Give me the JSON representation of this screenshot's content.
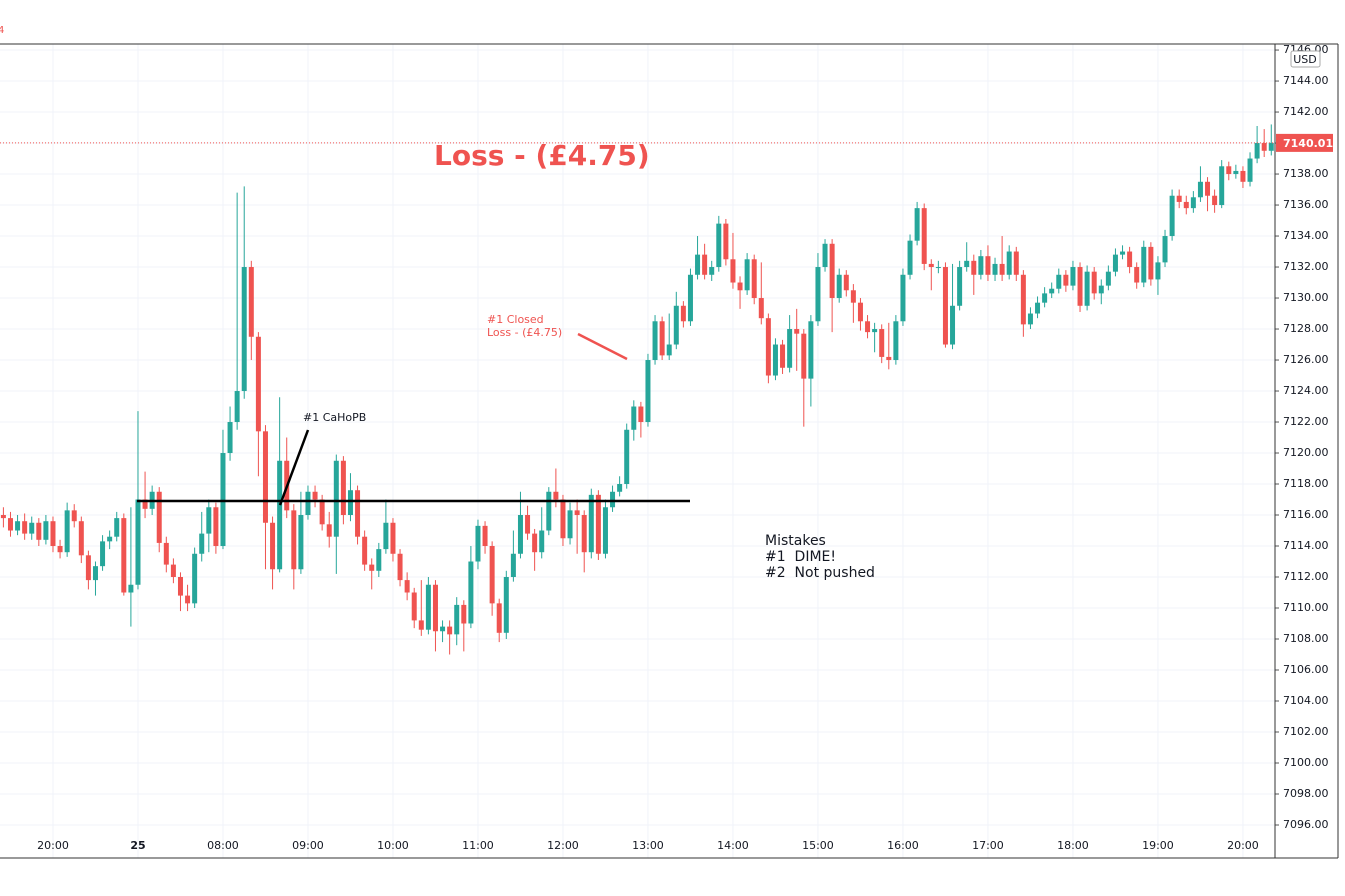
{
  "chart_data": {
    "type": "candlestick",
    "corner_label": "4",
    "currency": "USD",
    "annotations": {
      "headline": "Loss - (£4.75)",
      "closed_note": [
        "#1 Closed",
        "Loss - (£4.75)"
      ],
      "entry_note": "#1 CaHoPB",
      "mistakes": [
        "Mistakes",
        "#1  DIME!",
        "#2  Not pushed"
      ]
    },
    "level_line": 7116.9,
    "up_color": "#26a69a",
    "down_color": "#ef5350",
    "grid": true,
    "ylim": [
      7093.87,
      7146.39
    ],
    "yticks": [
      {
        "value": 7096,
        "label": "7096.00"
      },
      {
        "value": 7098,
        "label": "7098.00"
      },
      {
        "value": 7100,
        "label": "7100.00"
      },
      {
        "value": 7102,
        "label": "7102.00"
      },
      {
        "value": 7104,
        "label": "7104.00"
      },
      {
        "value": 7106,
        "label": "7106.00"
      },
      {
        "value": 7108,
        "label": "7108.00"
      },
      {
        "value": 7110,
        "label": "7110.00"
      },
      {
        "value": 7112,
        "label": "7112.00"
      },
      {
        "value": 7114,
        "label": "7114.00"
      },
      {
        "value": 7116,
        "label": "7116.00"
      },
      {
        "value": 7118,
        "label": "7118.00"
      },
      {
        "value": 7120,
        "label": "7120.00"
      },
      {
        "value": 7122,
        "label": "7122.00"
      },
      {
        "value": 7124,
        "label": "7124.00"
      },
      {
        "value": 7126,
        "label": "7126.00"
      },
      {
        "value": 7128,
        "label": "7128.00"
      },
      {
        "value": 7130,
        "label": "7130.00"
      },
      {
        "value": 7132,
        "label": "7132.00"
      },
      {
        "value": 7134,
        "label": "7134.00"
      },
      {
        "value": 7136,
        "label": "7136.00"
      },
      {
        "value": 7138,
        "label": "7138.00"
      },
      {
        "value": 7140,
        "label": "7140.00"
      },
      {
        "value": 7142,
        "label": "7142.00"
      },
      {
        "value": 7144,
        "label": "7144.00"
      },
      {
        "value": 7146,
        "label": "7146.00"
      }
    ],
    "categories": [
      null,
      null,
      null,
      null,
      null,
      null,
      null,
      "20:00",
      null,
      null,
      null,
      null,
      null,
      null,
      null,
      null,
      null,
      null,
      null,
      "25",
      null,
      null,
      null,
      null,
      null,
      null,
      null,
      null,
      null,
      null,
      null,
      "08:00",
      null,
      null,
      null,
      null,
      null,
      null,
      null,
      null,
      null,
      null,
      null,
      "09:00",
      null,
      null,
      null,
      null,
      null,
      null,
      null,
      null,
      null,
      null,
      null,
      "10:00",
      null,
      null,
      null,
      null,
      null,
      null,
      null,
      null,
      null,
      null,
      null,
      "11:00",
      null,
      null,
      null,
      null,
      null,
      null,
      null,
      null,
      null,
      null,
      null,
      "12:00",
      null,
      null,
      null,
      null,
      null,
      null,
      null,
      null,
      null,
      null,
      null,
      "13:00",
      null,
      null,
      null,
      null,
      null,
      null,
      null,
      null,
      null,
      null,
      null,
      "14:00",
      null,
      null,
      null,
      null,
      null,
      null,
      null,
      null,
      null,
      null,
      null,
      "15:00",
      null,
      null,
      null,
      null,
      null,
      null,
      null,
      null,
      null,
      null,
      null,
      "16:00",
      null,
      null,
      null,
      null,
      null,
      null,
      null,
      null,
      null,
      null,
      null,
      "17:00",
      null,
      null,
      null,
      null,
      null,
      null,
      null,
      null,
      null,
      null,
      null,
      "18:00",
      null,
      null,
      null,
      null,
      null,
      null,
      null,
      null,
      null,
      null,
      null,
      "19:00",
      null,
      null,
      null,
      null,
      null,
      null,
      null,
      null,
      null,
      null,
      null,
      "20:00",
      null,
      null,
      null,
      null
    ],
    "ohlc": [
      [
        7116,
        7116.5,
        7115.2,
        7115.8
      ],
      [
        7115.8,
        7116.2,
        7114.6,
        7115
      ],
      [
        7115,
        7116,
        7114.7,
        7115.6
      ],
      [
        7115.6,
        7116.1,
        7114.4,
        7114.8
      ],
      [
        7114.8,
        7115.9,
        7114.4,
        7115.5
      ],
      [
        7115.5,
        7115.8,
        7114,
        7114.4
      ],
      [
        7114.4,
        7116,
        7114.1,
        7115.6
      ],
      [
        7115.6,
        7115.9,
        7113.6,
        7114
      ],
      [
        7114,
        7114.4,
        7113.2,
        7113.6
      ],
      [
        7113.6,
        7116.8,
        7113.3,
        7116.3
      ],
      [
        7116.3,
        7116.7,
        7115.2,
        7115.6
      ],
      [
        7115.6,
        7115.9,
        7112.9,
        7113.4
      ],
      [
        7113.4,
        7113.7,
        7111.2,
        7111.8
      ],
      [
        7111.8,
        7113,
        7110.8,
        7112.7
      ],
      [
        7112.7,
        7114.7,
        7112.4,
        7114.3
      ],
      [
        7114.3,
        7115,
        7113.8,
        7114.6
      ],
      [
        7114.6,
        7116.2,
        7114.3,
        7115.8
      ],
      [
        7115.8,
        7116.1,
        7110.8,
        7111
      ],
      [
        7111,
        7116.5,
        7108.8,
        7111.5
      ],
      [
        7111.5,
        7122.7,
        7111.2,
        7117
      ],
      [
        7117,
        7118.8,
        7115.8,
        7116.4
      ],
      [
        7116.4,
        7117.9,
        7116,
        7117.5
      ],
      [
        7117.5,
        7117.8,
        7113.6,
        7114.2
      ],
      [
        7114.2,
        7114.6,
        7112.3,
        7112.8
      ],
      [
        7112.8,
        7113.2,
        7111.6,
        7112
      ],
      [
        7112,
        7112.3,
        7109.8,
        7110.8
      ],
      [
        7110.8,
        7111.5,
        7109.8,
        7110.3
      ],
      [
        7110.3,
        7113.9,
        7110,
        7113.5
      ],
      [
        7113.5,
        7116.2,
        7113,
        7114.8
      ],
      [
        7114.8,
        7117,
        7113.6,
        7116.5
      ],
      [
        7116.5,
        7116.8,
        7113.5,
        7114
      ],
      [
        7114,
        7121.5,
        7113.8,
        7120
      ],
      [
        7120,
        7123,
        7119.5,
        7122
      ],
      [
        7122,
        7136.8,
        7121.5,
        7124
      ],
      [
        7124,
        7137.2,
        7123.5,
        7132
      ],
      [
        7132,
        7132.4,
        7126,
        7127.5
      ],
      [
        7127.5,
        7127.8,
        7118.5,
        7121.4
      ],
      [
        7121.4,
        7121.8,
        7112.5,
        7115.5
      ],
      [
        7115.5,
        7115.9,
        7111.2,
        7112.5
      ],
      [
        7112.5,
        7123.6,
        7112.3,
        7119.5
      ],
      [
        7119.5,
        7121,
        7115.8,
        7116.3
      ],
      [
        7116.3,
        7116.7,
        7111.2,
        7112.5
      ],
      [
        7112.5,
        7117.5,
        7112.2,
        7116
      ],
      [
        7116,
        7117.9,
        7115.7,
        7117.5
      ],
      [
        7117.5,
        7117.9,
        7116.5,
        7117
      ],
      [
        7117,
        7117.3,
        7115,
        7115.4
      ],
      [
        7115.4,
        7116.2,
        7113.9,
        7114.6
      ],
      [
        7114.6,
        7119.9,
        7112.2,
        7119.5
      ],
      [
        7119.5,
        7119.8,
        7115.4,
        7116
      ],
      [
        7116,
        7118.7,
        7115.6,
        7117.6
      ],
      [
        7117.6,
        7117.9,
        7114.1,
        7114.6
      ],
      [
        7114.6,
        7115,
        7112.4,
        7112.8
      ],
      [
        7112.8,
        7113.2,
        7111.2,
        7112.4
      ],
      [
        7112.4,
        7114.2,
        7112,
        7113.8
      ],
      [
        7113.8,
        7117,
        7113.5,
        7115.5
      ],
      [
        7115.5,
        7115.8,
        7113,
        7113.5
      ],
      [
        7113.5,
        7113.8,
        7111.4,
        7111.8
      ],
      [
        7111.8,
        7112.3,
        7110.5,
        7111
      ],
      [
        7111,
        7111.3,
        7108.7,
        7109.2
      ],
      [
        7109.2,
        7111.8,
        7108.2,
        7108.6
      ],
      [
        7108.6,
        7112,
        7108.3,
        7111.5
      ],
      [
        7111.5,
        7111.8,
        7107.2,
        7108.5
      ],
      [
        7108.5,
        7109.2,
        7107.8,
        7108.8
      ],
      [
        7108.8,
        7109.2,
        7107,
        7108.3
      ],
      [
        7108.3,
        7110.7,
        7107.6,
        7110.2
      ],
      [
        7110.2,
        7110.5,
        7107.2,
        7109
      ],
      [
        7109,
        7114,
        7108.7,
        7113
      ],
      [
        7113,
        7115.7,
        7112.5,
        7115.3
      ],
      [
        7115.3,
        7115.6,
        7113.5,
        7114
      ],
      [
        7114,
        7114.3,
        7109.5,
        7110.3
      ],
      [
        7110.3,
        7110.6,
        7107.8,
        7108.4
      ],
      [
        7108.4,
        7112.4,
        7108,
        7112
      ],
      [
        7112,
        7115,
        7111.7,
        7113.5
      ],
      [
        7113.5,
        7117.5,
        7113.2,
        7116
      ],
      [
        7116,
        7116.6,
        7114.4,
        7114.8
      ],
      [
        7114.8,
        7115.1,
        7112.4,
        7113.6
      ],
      [
        7113.6,
        7116.5,
        7113.2,
        7115
      ],
      [
        7115,
        7117.8,
        7114.7,
        7117.5
      ],
      [
        7117.5,
        7119,
        7116.5,
        7117
      ],
      [
        7117,
        7117.3,
        7114,
        7114.5
      ],
      [
        7114.5,
        7116.8,
        7114.1,
        7116.3
      ],
      [
        7116.3,
        7117,
        7113.5,
        7116
      ],
      [
        7116,
        7116.3,
        7112.3,
        7113.6
      ],
      [
        7113.6,
        7117.7,
        7113.2,
        7117.3
      ],
      [
        7117.3,
        7117.6,
        7113.1,
        7113.5
      ],
      [
        7113.5,
        7117,
        7113.2,
        7116.5
      ],
      [
        7116.5,
        7117.9,
        7116.2,
        7117.5
      ],
      [
        7117.5,
        7118.5,
        7117.2,
        7118
      ],
      [
        7118,
        7121.9,
        7117.7,
        7121.5
      ],
      [
        7121.5,
        7123.4,
        7120.8,
        7123
      ],
      [
        7123,
        7123.3,
        7121,
        7122
      ],
      [
        7122,
        7126.4,
        7121.7,
        7126
      ],
      [
        7126,
        7128.9,
        7125.7,
        7128.5
      ],
      [
        7128.5,
        7128.8,
        7126,
        7126.3
      ],
      [
        7126.3,
        7129,
        7126,
        7127
      ],
      [
        7127,
        7130.4,
        7126.7,
        7129.5
      ],
      [
        7129.5,
        7129.8,
        7128.1,
        7128.5
      ],
      [
        7128.5,
        7131.9,
        7128.2,
        7131.5
      ],
      [
        7131.5,
        7134,
        7131.2,
        7132.8
      ],
      [
        7132.8,
        7133.5,
        7131.2,
        7131.5
      ],
      [
        7131.5,
        7132.4,
        7131.1,
        7132
      ],
      [
        7132,
        7135.3,
        7131.7,
        7134.8
      ],
      [
        7134.8,
        7135.1,
        7132.1,
        7132.5
      ],
      [
        7132.5,
        7134.2,
        7130.6,
        7131
      ],
      [
        7131,
        7131.4,
        7129.3,
        7130.5
      ],
      [
        7130.5,
        7132.9,
        7130.2,
        7132.5
      ],
      [
        7132.5,
        7132.8,
        7129.6,
        7130
      ],
      [
        7130,
        7132.3,
        7128.3,
        7128.7
      ],
      [
        7128.7,
        7129,
        7124.5,
        7125
      ],
      [
        7125,
        7127.4,
        7124.7,
        7127
      ],
      [
        7127,
        7127.3,
        7125.1,
        7125.5
      ],
      [
        7125.5,
        7128.9,
        7125.2,
        7128
      ],
      [
        7128,
        7129.3,
        7125.3,
        7127.7
      ],
      [
        7127.7,
        7128,
        7121.7,
        7124.8
      ],
      [
        7124.8,
        7128.9,
        7123,
        7128.5
      ],
      [
        7128.5,
        7132.9,
        7128.2,
        7132
      ],
      [
        7132,
        7133.8,
        7131.7,
        7133.5
      ],
      [
        7133.5,
        7133.8,
        7127.8,
        7130
      ],
      [
        7130,
        7131.9,
        7129.7,
        7131.5
      ],
      [
        7131.5,
        7131.8,
        7130.1,
        7130.5
      ],
      [
        7130.5,
        7130.9,
        7128.4,
        7129.7
      ],
      [
        7129.7,
        7130,
        7127.9,
        7128.5
      ],
      [
        7128.5,
        7128.9,
        7127.4,
        7127.8
      ],
      [
        7127.8,
        7128.4,
        7126.5,
        7128
      ],
      [
        7128,
        7128.3,
        7125.8,
        7126.2
      ],
      [
        7126.2,
        7128.4,
        7125.4,
        7126
      ],
      [
        7126,
        7128.9,
        7125.7,
        7128.5
      ],
      [
        7128.5,
        7131.9,
        7128.2,
        7131.5
      ],
      [
        7131.5,
        7134.1,
        7131.2,
        7133.7
      ],
      [
        7133.7,
        7136.2,
        7133.4,
        7135.8
      ],
      [
        7135.8,
        7136.1,
        7131.8,
        7132.2
      ],
      [
        7132.2,
        7132.5,
        7130.5,
        7132
      ],
      [
        7132,
        7132.4,
        7131.6,
        7132
      ],
      [
        7132,
        7132.3,
        7126.8,
        7127
      ],
      [
        7127,
        7132.2,
        7126.7,
        7129.5
      ],
      [
        7129.5,
        7132.4,
        7129.2,
        7132
      ],
      [
        7132,
        7133.6,
        7131.7,
        7132.4
      ],
      [
        7132.4,
        7132.8,
        7130.2,
        7131.5
      ],
      [
        7131.5,
        7133.1,
        7131.2,
        7132.7
      ],
      [
        7132.7,
        7133.4,
        7131.1,
        7131.5
      ],
      [
        7131.5,
        7132.6,
        7131.1,
        7132.2
      ],
      [
        7132.2,
        7134,
        7131.1,
        7131.5
      ],
      [
        7131.5,
        7133.4,
        7131.2,
        7133
      ],
      [
        7133,
        7133.3,
        7131.1,
        7131.5
      ],
      [
        7131.5,
        7131.8,
        7127.5,
        7128.3
      ],
      [
        7128.3,
        7129.4,
        7128,
        7129
      ],
      [
        7129,
        7130.1,
        7128.7,
        7129.7
      ],
      [
        7129.7,
        7130.7,
        7129.4,
        7130.3
      ],
      [
        7130.3,
        7131,
        7130,
        7130.6
      ],
      [
        7130.6,
        7131.9,
        7130.3,
        7131.5
      ],
      [
        7131.5,
        7131.8,
        7130.4,
        7130.8
      ],
      [
        7130.8,
        7132.4,
        7130.5,
        7132
      ],
      [
        7132,
        7132.3,
        7129.1,
        7129.5
      ],
      [
        7129.5,
        7132.1,
        7129.2,
        7131.7
      ],
      [
        7131.7,
        7132,
        7129.9,
        7130.3
      ],
      [
        7130.3,
        7131.2,
        7129.6,
        7130.8
      ],
      [
        7130.8,
        7132.1,
        7130.5,
        7131.7
      ],
      [
        7131.7,
        7133.2,
        7131.4,
        7132.8
      ],
      [
        7132.8,
        7133.4,
        7132.5,
        7133
      ],
      [
        7133,
        7133.3,
        7131.6,
        7132
      ],
      [
        7132,
        7132.3,
        7130.6,
        7131
      ],
      [
        7131,
        7133.7,
        7130.7,
        7133.3
      ],
      [
        7133.3,
        7133.6,
        7130.8,
        7131.2
      ],
      [
        7131.2,
        7132.7,
        7130.2,
        7132.3
      ],
      [
        7132.3,
        7134.4,
        7132,
        7134
      ],
      [
        7134,
        7137,
        7133.7,
        7136.6
      ],
      [
        7136.6,
        7137,
        7135.8,
        7136.2
      ],
      [
        7136.2,
        7136.6,
        7135.4,
        7135.8
      ],
      [
        7135.8,
        7136.9,
        7135.5,
        7136.5
      ],
      [
        7136.5,
        7138.5,
        7136.2,
        7137.5
      ],
      [
        7137.5,
        7137.8,
        7135.6,
        7136.6
      ],
      [
        7136.6,
        7137,
        7135.5,
        7136
      ],
      [
        7136,
        7138.9,
        7135.8,
        7138.5
      ],
      [
        7138.5,
        7138.8,
        7137.6,
        7138
      ],
      [
        7138,
        7138.6,
        7137.7,
        7138.2
      ],
      [
        7138.2,
        7138.5,
        7137.1,
        7137.5
      ],
      [
        7137.5,
        7139.4,
        7137.2,
        7139
      ],
      [
        7139,
        7141.1,
        7138.7,
        7140
      ],
      [
        7140,
        7140.9,
        7139.1,
        7139.5
      ],
      [
        7139.5,
        7141.2,
        7139.2,
        7140.01
      ]
    ]
  }
}
